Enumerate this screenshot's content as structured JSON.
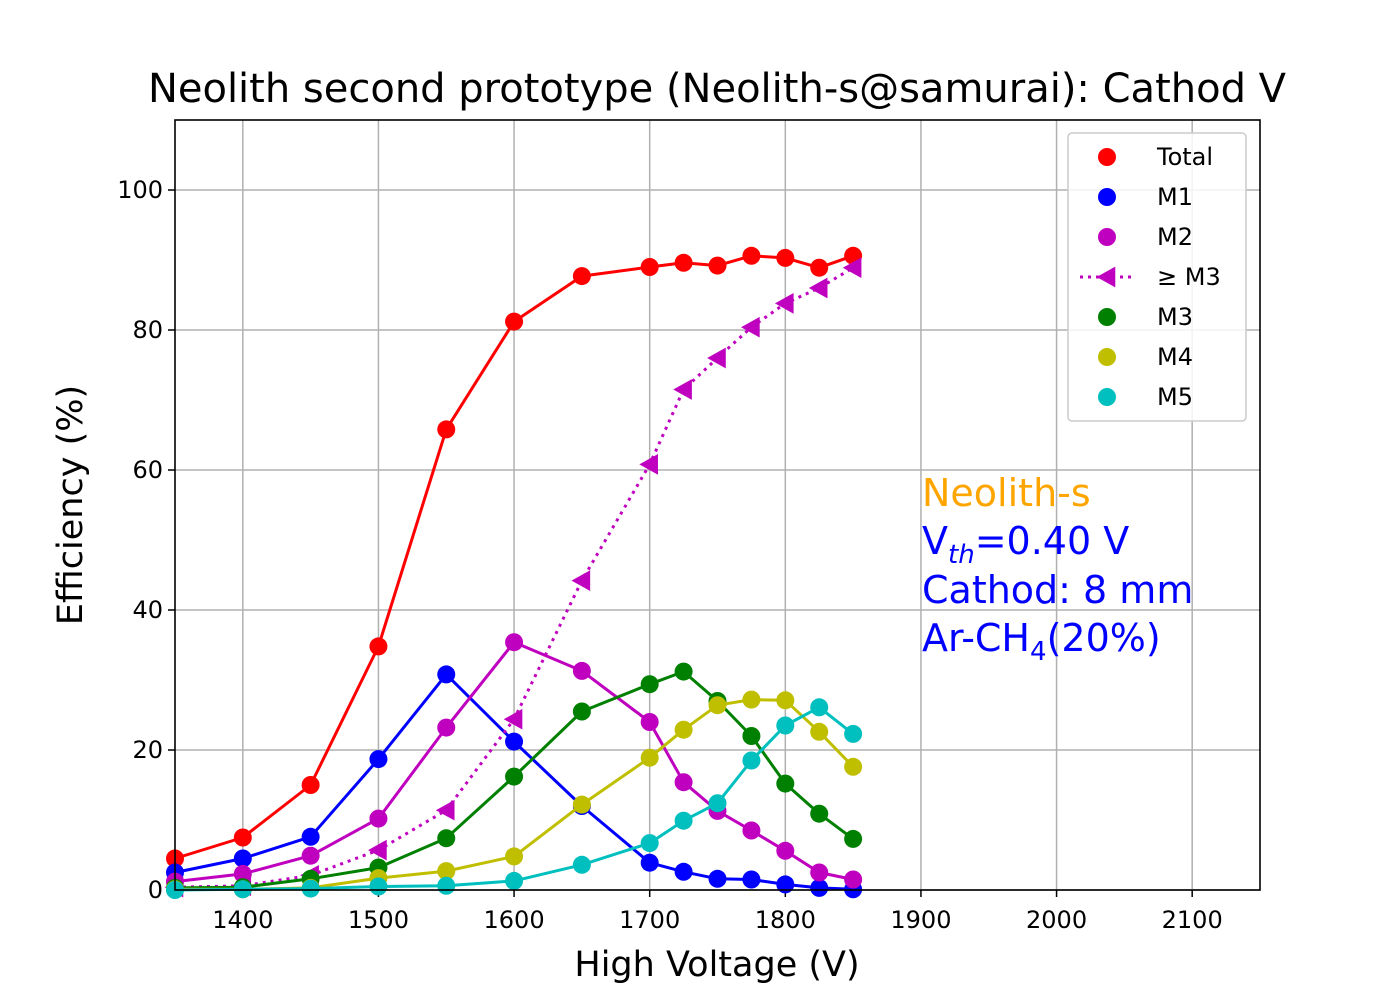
{
  "chart_data": {
    "type": "line",
    "title": "Neolith second prototype (Neolith-s@samurai): Cathod V",
    "xlabel": "High Voltage (V)",
    "ylabel": "Efficiency (%)",
    "xlim": [
      1350,
      2150
    ],
    "ylim": [
      0,
      110
    ],
    "xticks": [
      1400,
      1500,
      1600,
      1700,
      1800,
      1900,
      2000,
      2100
    ],
    "yticks": [
      0,
      20,
      40,
      60,
      80,
      100
    ],
    "grid": true,
    "legend_position": "top-right",
    "x": [
      1350,
      1400,
      1450,
      1500,
      1550,
      1600,
      1650,
      1700,
      1725,
      1750,
      1775,
      1800,
      1825,
      1850
    ],
    "series": [
      {
        "name": "Total",
        "color": "#ff0000",
        "marker": "circle",
        "line": "solid",
        "values": [
          4.5,
          7.5,
          15.0,
          34.8,
          65.8,
          81.2,
          87.7,
          89.0,
          89.6,
          89.2,
          90.6,
          90.3,
          88.9,
          90.6
        ]
      },
      {
        "name": "M1",
        "color": "#0000ff",
        "marker": "circle",
        "line": "solid",
        "values": [
          2.5,
          4.5,
          7.6,
          18.7,
          30.8,
          21.2,
          12.0,
          3.9,
          2.6,
          1.6,
          1.5,
          0.8,
          0.3,
          0.1
        ]
      },
      {
        "name": "M2",
        "color": "#bf00bf",
        "marker": "circle",
        "line": "solid",
        "values": [
          1.2,
          2.3,
          4.9,
          10.2,
          23.2,
          35.4,
          31.3,
          24.0,
          15.4,
          11.3,
          8.5,
          5.6,
          2.5,
          1.5
        ]
      },
      {
        "name": "≥ M3",
        "color": "#bf00bf",
        "marker": "triangle-left",
        "line": "dotted",
        "values": [
          0.4,
          0.6,
          2.1,
          5.7,
          11.4,
          24.4,
          44.2,
          60.8,
          71.5,
          76.0,
          80.4,
          83.8,
          86.0,
          88.9
        ]
      },
      {
        "name": "M3",
        "color": "#008000",
        "marker": "circle",
        "line": "solid",
        "values": [
          0.3,
          0.4,
          1.6,
          3.2,
          7.4,
          16.2,
          25.5,
          29.4,
          31.2,
          27.0,
          22.0,
          15.2,
          10.9,
          7.3
        ]
      },
      {
        "name": "M4",
        "color": "#bfbf00",
        "marker": "circle",
        "line": "solid",
        "values": [
          0.1,
          0.1,
          0.3,
          1.7,
          2.7,
          4.8,
          12.2,
          18.9,
          22.9,
          26.4,
          27.2,
          27.1,
          22.6,
          17.6
        ]
      },
      {
        "name": "M5",
        "color": "#00bfbf",
        "marker": "circle",
        "line": "solid",
        "values": [
          0.0,
          0.1,
          0.2,
          0.5,
          0.6,
          1.3,
          3.6,
          6.7,
          9.9,
          12.4,
          18.5,
          23.5,
          26.1,
          22.3
        ]
      }
    ],
    "annotation": {
      "line1": "Neolith-s",
      "line1_color": "#ffa500",
      "line2_prefix": "V",
      "line2_sub": "th",
      "line2_suffix": "=0.40 V",
      "line3": "Cathod: 8 mm",
      "line4_prefix": "Ar-CH",
      "line4_sub": "4",
      "line4_suffix": "(20%)",
      "text_color": "#0000ff"
    }
  }
}
